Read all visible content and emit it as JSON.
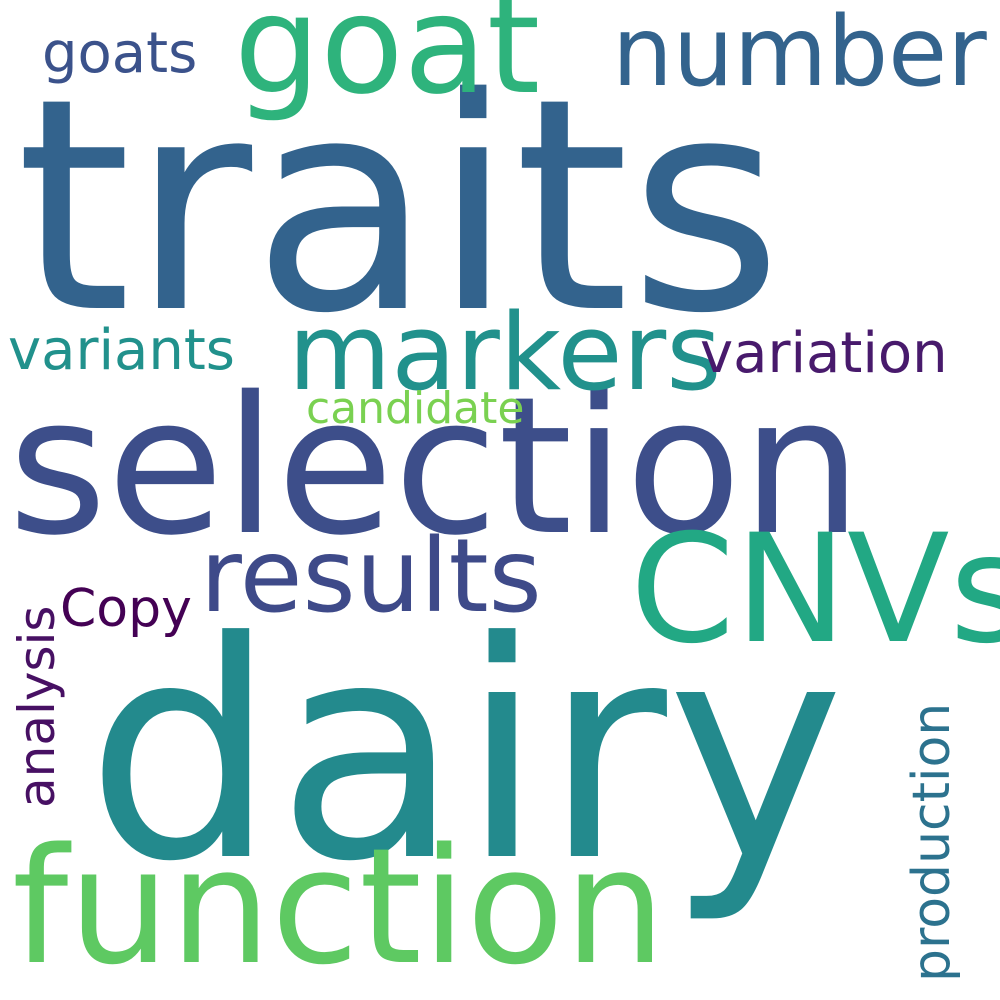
{
  "words": [
    {
      "id": "traits",
      "text": "traits",
      "color": "#33638d"
    },
    {
      "id": "dairy",
      "text": "dairy",
      "color": "#238a8d"
    },
    {
      "id": "selection",
      "text": "selection",
      "color": "#3d4e8a"
    },
    {
      "id": "cnvs",
      "text": "CNVs",
      "color": "#22a884"
    },
    {
      "id": "function",
      "text": "function",
      "color": "#5ec962"
    },
    {
      "id": "goat",
      "text": "goat",
      "color": "#2eb37c"
    },
    {
      "id": "markers",
      "text": "markers",
      "color": "#21918c"
    },
    {
      "id": "number",
      "text": "number",
      "color": "#33638d"
    },
    {
      "id": "results",
      "text": "results",
      "color": "#3e4a89"
    },
    {
      "id": "variation",
      "text": "variation",
      "color": "#481a6c"
    },
    {
      "id": "variants",
      "text": "variants",
      "color": "#21918c"
    },
    {
      "id": "goats",
      "text": "goats",
      "color": "#3b528b"
    },
    {
      "id": "candidate",
      "text": "candidate",
      "color": "#7ad151"
    },
    {
      "id": "copy",
      "text": "Copy",
      "color": "#440154"
    },
    {
      "id": "analysis",
      "text": "analysis",
      "color": "#471063"
    },
    {
      "id": "production",
      "text": "production",
      "color": "#2c728e"
    }
  ]
}
